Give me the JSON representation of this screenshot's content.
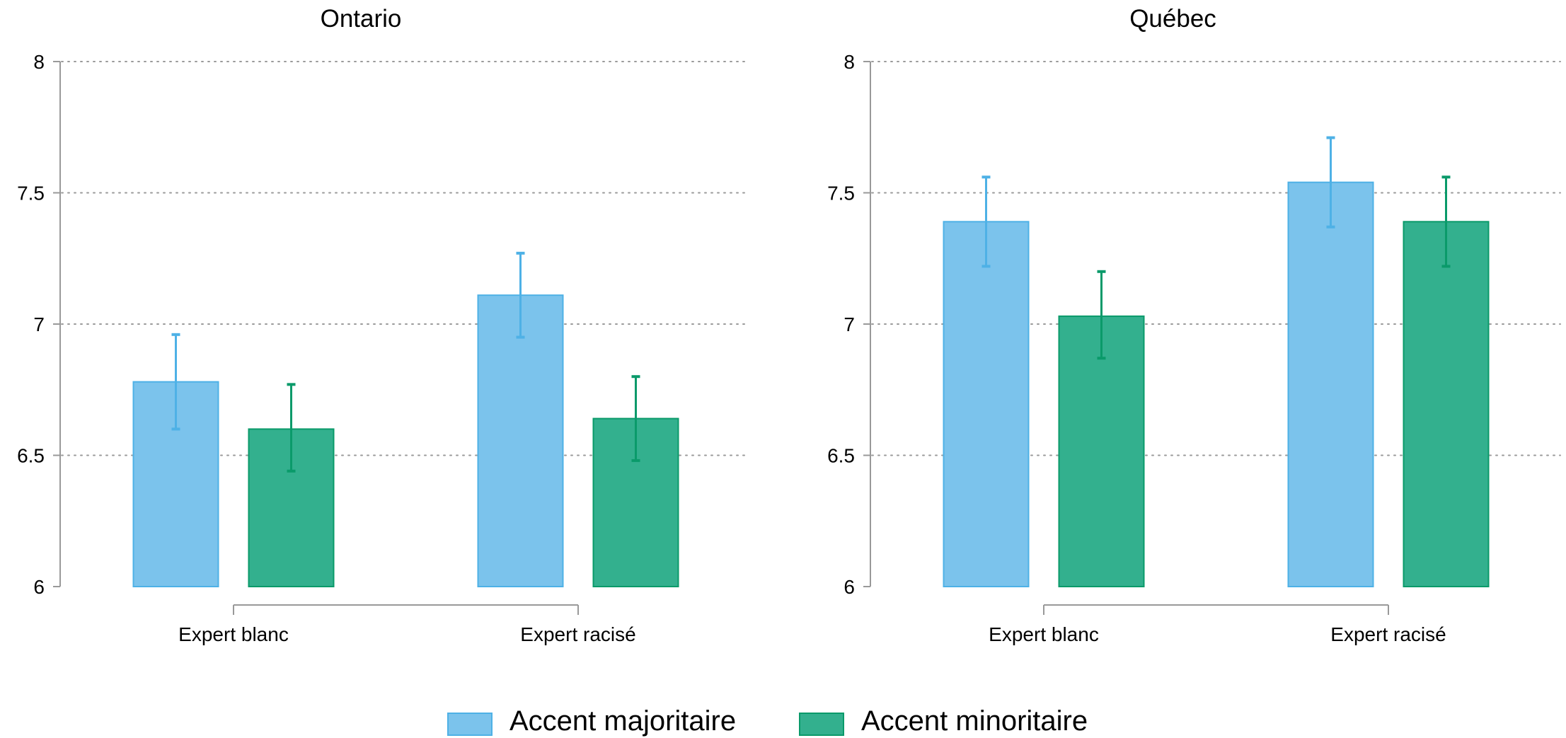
{
  "chart_data": [
    {
      "type": "bar",
      "title": "Ontario",
      "categories": [
        "Expert blanc",
        "Expert racisé"
      ],
      "series": [
        {
          "name": "Accent majoritaire",
          "values": [
            6.78,
            7.11
          ],
          "ci_low": [
            6.6,
            6.95
          ],
          "ci_high": [
            6.96,
            7.27
          ]
        },
        {
          "name": "Accent minoritaire",
          "values": [
            6.6,
            6.64
          ],
          "ci_low": [
            6.44,
            6.48
          ],
          "ci_high": [
            6.77,
            6.8
          ]
        }
      ],
      "ylim": [
        6,
        8
      ],
      "yticks": [
        "6",
        "6.5",
        "7",
        "7.5",
        "8"
      ],
      "grid": true,
      "xlabel": "",
      "ylabel": ""
    },
    {
      "type": "bar",
      "title": "Québec",
      "categories": [
        "Expert blanc",
        "Expert racisé"
      ],
      "series": [
        {
          "name": "Accent majoritaire",
          "values": [
            7.39,
            7.54
          ],
          "ci_low": [
            7.22,
            7.37
          ],
          "ci_high": [
            7.56,
            7.71
          ]
        },
        {
          "name": "Accent minoritaire",
          "values": [
            7.03,
            7.39
          ],
          "ci_low": [
            6.87,
            7.22
          ],
          "ci_high": [
            7.2,
            7.56
          ]
        }
      ],
      "ylim": [
        6,
        8
      ],
      "yticks": [
        "6",
        "6.5",
        "7",
        "7.5",
        "8"
      ],
      "grid": true,
      "xlabel": "",
      "ylabel": ""
    }
  ],
  "legend": {
    "position": "bottom",
    "items": [
      "Accent majoritaire",
      "Accent minoritaire"
    ]
  },
  "colors": {
    "majoritaire_fill": "#7bc3ec",
    "majoritaire_edge": "#4eb1e6",
    "minoritaire_fill": "#33b08e",
    "minoritaire_edge": "#0a9a6a",
    "axis": "#999999",
    "grid": "#9a9a9a"
  }
}
